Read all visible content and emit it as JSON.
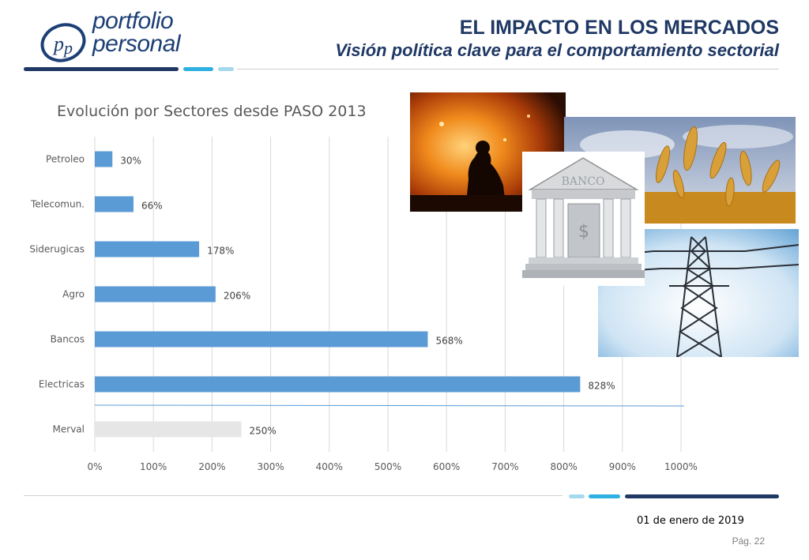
{
  "header": {
    "logo_line1": "portfolio",
    "logo_line2": "personal",
    "title": "EL IMPACTO EN LOS MERCADOS",
    "subtitle": "Visión política clave para el comportamiento sectorial"
  },
  "footer": {
    "date": "01 de enero de 2019",
    "page": "Pág. 22"
  },
  "colors": {
    "brand_dark": "#1f3864",
    "accent_blue": "#2eb0e0",
    "accent_light": "#a6d9ee",
    "bar_blue": "#5b9bd5",
    "bar_gray": "#e6e6e6"
  },
  "chart_data": {
    "type": "bar",
    "orientation": "horizontal",
    "title": "Evolución por Sectores desde PASO 2013",
    "categories": [
      "Petroleo",
      "Telecomun.",
      "Siderugicas",
      "Agro",
      "Bancos",
      "Electricas",
      "Merval"
    ],
    "values": [
      30,
      66,
      178,
      206,
      568,
      828,
      250
    ],
    "value_labels": [
      "30%",
      "66%",
      "178%",
      "206%",
      "568%",
      "828%",
      "250%"
    ],
    "highlight_category": "Merval",
    "xlim": [
      0,
      1000
    ],
    "xticks": [
      "0%",
      "100%",
      "200%",
      "300%",
      "400%",
      "500%",
      "600%",
      "700%",
      "800%",
      "900%",
      "1000%"
    ],
    "grid": true,
    "legend": "none"
  },
  "images": [
    {
      "name": "steel-worker-photo"
    },
    {
      "name": "wheat-field-photo"
    },
    {
      "name": "bank-building-photo"
    },
    {
      "name": "power-tower-photo"
    }
  ]
}
